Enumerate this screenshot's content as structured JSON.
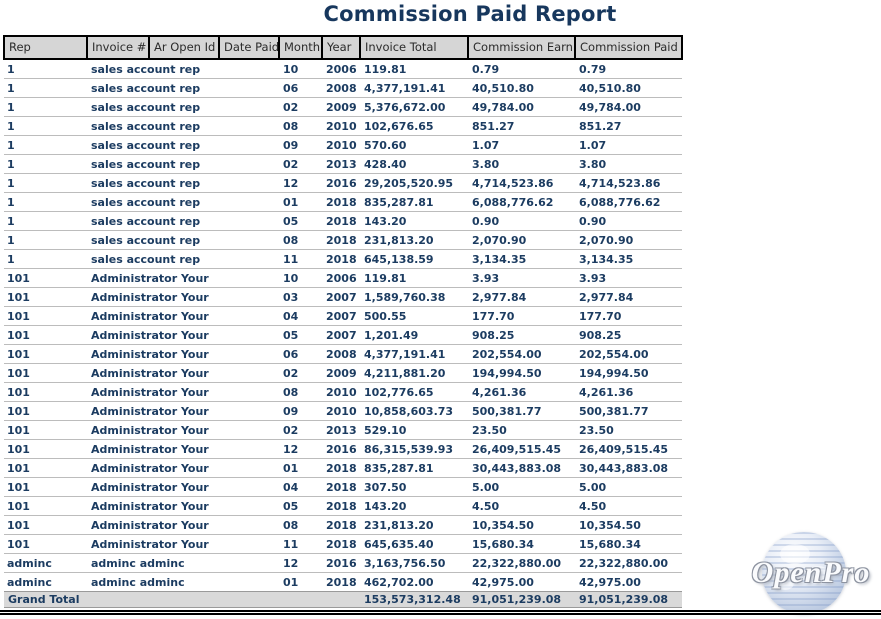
{
  "title": "Commission Paid Report",
  "logo": {
    "text": "OpenPro"
  },
  "colors": {
    "title_navy": "#17375d",
    "data_navy": "#1c3c61",
    "header_bg": "#d6d6d6",
    "header_border": "#000000",
    "row_separator": "#bcbcbc",
    "grand_total_bg": "#d9d9d9"
  },
  "table": {
    "columns": [
      "Rep",
      "Invoice #",
      "Ar Open Id",
      "Date Paid",
      "Month",
      "Year",
      "Invoice Total",
      "Commission Earn",
      "Commission Paid"
    ],
    "rows": [
      {
        "rep": "1",
        "name": "sales account rep",
        "month": "10",
        "year": "2006",
        "invoice_total": "119.81",
        "commission_earn": "0.79",
        "commission_paid": "0.79"
      },
      {
        "rep": "1",
        "name": "sales account rep",
        "month": "06",
        "year": "2008",
        "invoice_total": "4,377,191.41",
        "commission_earn": "40,510.80",
        "commission_paid": "40,510.80"
      },
      {
        "rep": "1",
        "name": "sales account rep",
        "month": "02",
        "year": "2009",
        "invoice_total": "5,376,672.00",
        "commission_earn": "49,784.00",
        "commission_paid": "49,784.00"
      },
      {
        "rep": "1",
        "name": "sales account rep",
        "month": "08",
        "year": "2010",
        "invoice_total": "102,676.65",
        "commission_earn": "851.27",
        "commission_paid": "851.27"
      },
      {
        "rep": "1",
        "name": "sales account rep",
        "month": "09",
        "year": "2010",
        "invoice_total": "570.60",
        "commission_earn": "1.07",
        "commission_paid": "1.07"
      },
      {
        "rep": "1",
        "name": "sales account rep",
        "month": "02",
        "year": "2013",
        "invoice_total": "428.40",
        "commission_earn": "3.80",
        "commission_paid": "3.80"
      },
      {
        "rep": "1",
        "name": "sales account rep",
        "month": "12",
        "year": "2016",
        "invoice_total": "29,205,520.95",
        "commission_earn": "4,714,523.86",
        "commission_paid": "4,714,523.86"
      },
      {
        "rep": "1",
        "name": "sales account rep",
        "month": "01",
        "year": "2018",
        "invoice_total": "835,287.81",
        "commission_earn": "6,088,776.62",
        "commission_paid": "6,088,776.62"
      },
      {
        "rep": "1",
        "name": "sales account rep",
        "month": "05",
        "year": "2018",
        "invoice_total": "143.20",
        "commission_earn": "0.90",
        "commission_paid": "0.90"
      },
      {
        "rep": "1",
        "name": "sales account rep",
        "month": "08",
        "year": "2018",
        "invoice_total": "231,813.20",
        "commission_earn": "2,070.90",
        "commission_paid": "2,070.90"
      },
      {
        "rep": "1",
        "name": "sales account rep",
        "month": "11",
        "year": "2018",
        "invoice_total": "645,138.59",
        "commission_earn": "3,134.35",
        "commission_paid": "3,134.35"
      },
      {
        "rep": "101",
        "name": "Administrator Your",
        "month": "10",
        "year": "2006",
        "invoice_total": "119.81",
        "commission_earn": "3.93",
        "commission_paid": "3.93"
      },
      {
        "rep": "101",
        "name": "Administrator Your",
        "month": "03",
        "year": "2007",
        "invoice_total": "1,589,760.38",
        "commission_earn": "2,977.84",
        "commission_paid": "2,977.84"
      },
      {
        "rep": "101",
        "name": "Administrator Your",
        "month": "04",
        "year": "2007",
        "invoice_total": "500.55",
        "commission_earn": "177.70",
        "commission_paid": "177.70"
      },
      {
        "rep": "101",
        "name": "Administrator Your",
        "month": "05",
        "year": "2007",
        "invoice_total": "1,201.49",
        "commission_earn": "908.25",
        "commission_paid": "908.25"
      },
      {
        "rep": "101",
        "name": "Administrator Your",
        "month": "06",
        "year": "2008",
        "invoice_total": "4,377,191.41",
        "commission_earn": "202,554.00",
        "commission_paid": "202,554.00"
      },
      {
        "rep": "101",
        "name": "Administrator Your",
        "month": "02",
        "year": "2009",
        "invoice_total": "4,211,881.20",
        "commission_earn": "194,994.50",
        "commission_paid": "194,994.50"
      },
      {
        "rep": "101",
        "name": "Administrator Your",
        "month": "08",
        "year": "2010",
        "invoice_total": "102,776.65",
        "commission_earn": "4,261.36",
        "commission_paid": "4,261.36"
      },
      {
        "rep": "101",
        "name": "Administrator Your",
        "month": "09",
        "year": "2010",
        "invoice_total": "10,858,603.73",
        "commission_earn": "500,381.77",
        "commission_paid": "500,381.77"
      },
      {
        "rep": "101",
        "name": "Administrator Your",
        "month": "02",
        "year": "2013",
        "invoice_total": "529.10",
        "commission_earn": "23.50",
        "commission_paid": "23.50"
      },
      {
        "rep": "101",
        "name": "Administrator Your",
        "month": "12",
        "year": "2016",
        "invoice_total": "86,315,539.93",
        "commission_earn": "26,409,515.45",
        "commission_paid": "26,409,515.45"
      },
      {
        "rep": "101",
        "name": "Administrator Your",
        "month": "01",
        "year": "2018",
        "invoice_total": "835,287.81",
        "commission_earn": "30,443,883.08",
        "commission_paid": "30,443,883.08"
      },
      {
        "rep": "101",
        "name": "Administrator Your",
        "month": "04",
        "year": "2018",
        "invoice_total": "307.50",
        "commission_earn": "5.00",
        "commission_paid": "5.00"
      },
      {
        "rep": "101",
        "name": "Administrator Your",
        "month": "05",
        "year": "2018",
        "invoice_total": "143.20",
        "commission_earn": "4.50",
        "commission_paid": "4.50"
      },
      {
        "rep": "101",
        "name": "Administrator Your",
        "month": "08",
        "year": "2018",
        "invoice_total": "231,813.20",
        "commission_earn": "10,354.50",
        "commission_paid": "10,354.50"
      },
      {
        "rep": "101",
        "name": "Administrator Your",
        "month": "11",
        "year": "2018",
        "invoice_total": "645,635.40",
        "commission_earn": "15,680.34",
        "commission_paid": "15,680.34"
      },
      {
        "rep": "adminc",
        "name": "adminc adminc",
        "month": "12",
        "year": "2016",
        "invoice_total": "3,163,756.50",
        "commission_earn": "22,322,880.00",
        "commission_paid": "22,322,880.00"
      },
      {
        "rep": "adminc",
        "name": "adminc adminc",
        "month": "01",
        "year": "2018",
        "invoice_total": "462,702.00",
        "commission_earn": "42,975.00",
        "commission_paid": "42,975.00"
      }
    ],
    "grand_total": {
      "label": "Grand Total",
      "invoice_total": "153,573,312.48",
      "commission_earn": "91,051,239.08",
      "commission_paid": "91,051,239.08"
    }
  }
}
